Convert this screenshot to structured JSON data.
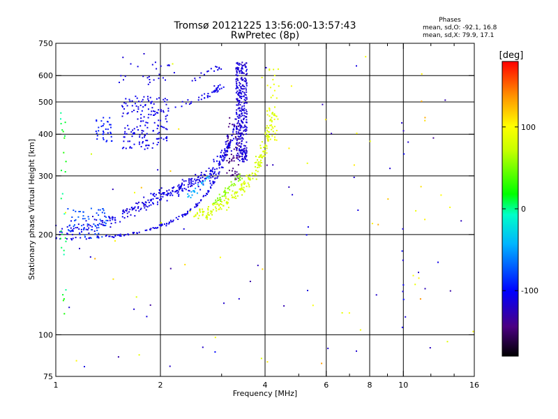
{
  "chart_data": {
    "type": "scatter",
    "title": "Tromsø 20121225 13:56:00-13:57:43",
    "subtitle": "RwPretec (8p)",
    "stats": {
      "heading": "Phases",
      "line_o": "mean, sd,O: -92.1, 16.8",
      "line_x": "mean, sd,X:  79.9, 17.1"
    },
    "xlabel": "Frequency [MHz]",
    "ylabel": "Stationary phase Virtual Height [km]",
    "xscale": "log",
    "yscale": "log",
    "xlim": [
      1,
      16
    ],
    "ylim": [
      75,
      750
    ],
    "xticks": [
      1,
      2,
      4,
      6,
      8,
      10,
      16
    ],
    "xtick_labels": [
      "1",
      "2",
      "4",
      "6",
      "8",
      "10",
      "16"
    ],
    "xgrid": [
      2,
      4,
      6,
      8,
      10
    ],
    "xminor": [
      3,
      5,
      7,
      9,
      12,
      14
    ],
    "yticks": [
      75,
      100,
      200,
      300,
      400,
      500,
      600,
      750
    ],
    "ytick_labels": [
      "75",
      "100",
      "200",
      "300",
      "400",
      "500",
      "600",
      "750"
    ],
    "ygrid": [
      100,
      200,
      300,
      400,
      500,
      600
    ],
    "grid": true,
    "colorbar": {
      "label": "[deg]",
      "min": -180,
      "max": 180,
      "ticks": [
        100,
        0,
        -100
      ],
      "tick_labels": [
        "100",
        "0",
        "-100"
      ]
    },
    "colors": {
      "background": "#ffffff",
      "axes": "#000000"
    },
    "groups": [
      {
        "role": "O-trace lower edge",
        "phase": -110,
        "spread": 8,
        "kind": "curve",
        "x": [
          1.0,
          1.1,
          1.2,
          1.3,
          1.4,
          1.5,
          1.6,
          1.7,
          1.8,
          1.9,
          2.0,
          2.1,
          2.2,
          2.3,
          2.4,
          2.5,
          2.6,
          2.7,
          2.8,
          2.9,
          3.0,
          3.1,
          3.2,
          3.3
        ],
        "y": [
          196,
          195,
          195,
          196,
          197,
          198,
          200,
          202,
          205,
          208,
          212,
          216,
          221,
          227,
          233,
          241,
          251,
          263,
          278,
          296,
          320,
          352,
          392,
          450
        ],
        "count": 150,
        "jitter": 0.015
      },
      {
        "role": "O-trace band",
        "phase": -110,
        "spread": 10,
        "kind": "curve",
        "x": [
          1.0,
          1.2,
          1.4,
          1.6,
          1.8,
          2.0,
          2.2,
          2.4,
          2.6,
          2.8,
          3.0,
          3.2
        ],
        "y": [
          205,
          210,
          220,
          232,
          248,
          262,
          272,
          282,
          292,
          305,
          335,
          400
        ],
        "count": 330,
        "jitter": 0.07
      },
      {
        "role": "O-trace cusp column",
        "phase": -115,
        "spread": 12,
        "kind": "column",
        "x": [
          3.3,
          3.55
        ],
        "y": [
          330,
          660
        ],
        "count": 320,
        "jitter": 0
      },
      {
        "role": "O-trace dark inner",
        "phase": -145,
        "spread": 10,
        "kind": "column",
        "x": [
          3.1,
          3.4
        ],
        "y": [
          290,
          450
        ],
        "count": 60,
        "jitter": 0
      },
      {
        "role": "upper O cluster",
        "phase": -108,
        "spread": 8,
        "kind": "box",
        "x": [
          1.55,
          2.1
        ],
        "y": [
          360,
          520
        ],
        "count": 160,
        "jitter": 0
      },
      {
        "role": "upper O tail",
        "phase": -108,
        "spread": 8,
        "kind": "curve",
        "x": [
          2.1,
          2.4,
          2.7,
          2.9,
          3.0
        ],
        "y": [
          470,
          500,
          520,
          540,
          560
        ],
        "count": 40,
        "jitter": 0.04
      },
      {
        "role": "upper O left",
        "phase": -95,
        "spread": 8,
        "kind": "box",
        "x": [
          1.3,
          1.45
        ],
        "y": [
          380,
          450
        ],
        "count": 35,
        "jitter": 0
      },
      {
        "role": "upper O top",
        "phase": -110,
        "spread": 6,
        "kind": "box",
        "x": [
          1.5,
          2.2
        ],
        "y": [
          560,
          660
        ],
        "count": 25,
        "jitter": 0
      },
      {
        "role": "upper O top right",
        "phase": -110,
        "spread": 6,
        "kind": "curve",
        "x": [
          2.5,
          2.8,
          3.0
        ],
        "y": [
          580,
          620,
          640
        ],
        "count": 16,
        "jitter": 0.03
      },
      {
        "role": "light blue patch",
        "phase": -75,
        "spread": 12,
        "kind": "box",
        "x": [
          1.08,
          1.4
        ],
        "y": [
          195,
          240
        ],
        "count": 60,
        "jitter": 0
      },
      {
        "role": "X-trace",
        "phase": 80,
        "spread": 10,
        "kind": "curve",
        "x": [
          2.5,
          2.8,
          3.1,
          3.4,
          3.7,
          3.9,
          4.1,
          4.3
        ],
        "y": [
          228,
          235,
          250,
          272,
          300,
          340,
          400,
          480
        ],
        "count": 200,
        "jitter": 0.06
      },
      {
        "role": "X-trace green band",
        "phase": 55,
        "spread": 10,
        "kind": "curve",
        "x": [
          2.8,
          3.0,
          3.2,
          3.4
        ],
        "y": [
          245,
          260,
          280,
          300
        ],
        "count": 45,
        "jitter": 0.04
      },
      {
        "role": "X-trace top column",
        "phase": 90,
        "spread": 10,
        "kind": "column",
        "x": [
          4.05,
          4.4
        ],
        "y": [
          380,
          640
        ],
        "count": 40,
        "jitter": 0
      },
      {
        "role": "cyan blobs",
        "phase": -45,
        "spread": 12,
        "kind": "curve",
        "x": [
          2.4,
          2.6,
          2.8
        ],
        "y": [
          262,
          280,
          300
        ],
        "count": 22,
        "jitter": 0.04
      },
      {
        "role": "green left column",
        "phase": 10,
        "spread": 30,
        "kind": "column",
        "x": [
          1.03,
          1.07
        ],
        "y": [
          110,
          550
        ],
        "count": 28,
        "jitter": 0
      },
      {
        "role": "noise O",
        "phase": -120,
        "spread": 25,
        "kind": "box",
        "x": [
          1.0,
          16.0
        ],
        "y": [
          80,
          700
        ],
        "count": 55,
        "jitter": 0
      },
      {
        "role": "noise X",
        "phase": 100,
        "spread": 40,
        "kind": "box",
        "x": [
          1.0,
          16.0
        ],
        "y": [
          80,
          700
        ],
        "count": 45,
        "jitter": 0
      },
      {
        "role": "noise column 10 MHz",
        "phase": -110,
        "spread": 20,
        "kind": "column",
        "x": [
          9.9,
          10.05
        ],
        "y": [
          105,
          450
        ],
        "count": 10,
        "jitter": 0
      },
      {
        "role": "noise column 11 MHz",
        "phase": 110,
        "spread": 30,
        "kind": "column",
        "x": [
          10.8,
          11.6
        ],
        "y": [
          120,
          620
        ],
        "count": 10,
        "jitter": 0
      }
    ]
  }
}
